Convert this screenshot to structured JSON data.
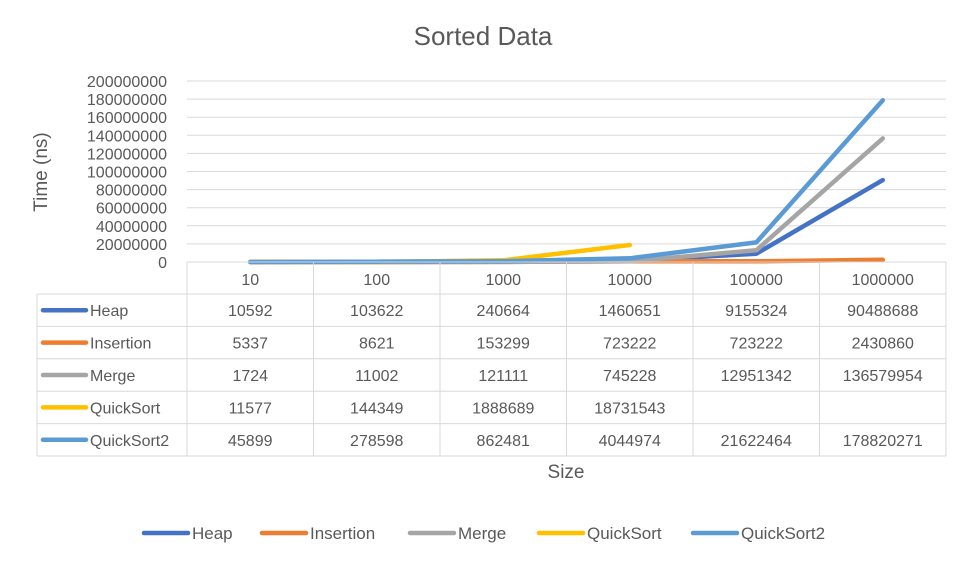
{
  "chart_data": {
    "type": "line",
    "title": "Sorted Data",
    "xlabel": "Size",
    "ylabel": "Time (ns)",
    "categories": [
      "10",
      "100",
      "1000",
      "10000",
      "100000",
      "1000000"
    ],
    "y_ticks": [
      "0",
      "20000000",
      "40000000",
      "60000000",
      "80000000",
      "100000000",
      "120000000",
      "140000000",
      "160000000",
      "180000000",
      "200000000"
    ],
    "ylim": [
      0,
      200000000
    ],
    "grid": true,
    "legend_position": "bottom",
    "data_table": true,
    "series": [
      {
        "name": "Heap",
        "color": "#4472C4",
        "values": [
          10592,
          103622,
          240664,
          1460651,
          9155324,
          90488688
        ]
      },
      {
        "name": "Insertion",
        "color": "#ED7D31",
        "values": [
          5337,
          8621,
          153299,
          723222,
          723222,
          2430860
        ]
      },
      {
        "name": "Merge",
        "color": "#A5A5A5",
        "values": [
          1724,
          11002,
          121111,
          745228,
          12951342,
          136579954
        ]
      },
      {
        "name": "QuickSort",
        "color": "#FFC000",
        "values": [
          11577,
          144349,
          1888689,
          18731543,
          null,
          null
        ]
      },
      {
        "name": "QuickSort2",
        "color": "#5B9BD5",
        "values": [
          45899,
          278598,
          862481,
          4044974,
          21622464,
          178820271
        ]
      }
    ]
  }
}
